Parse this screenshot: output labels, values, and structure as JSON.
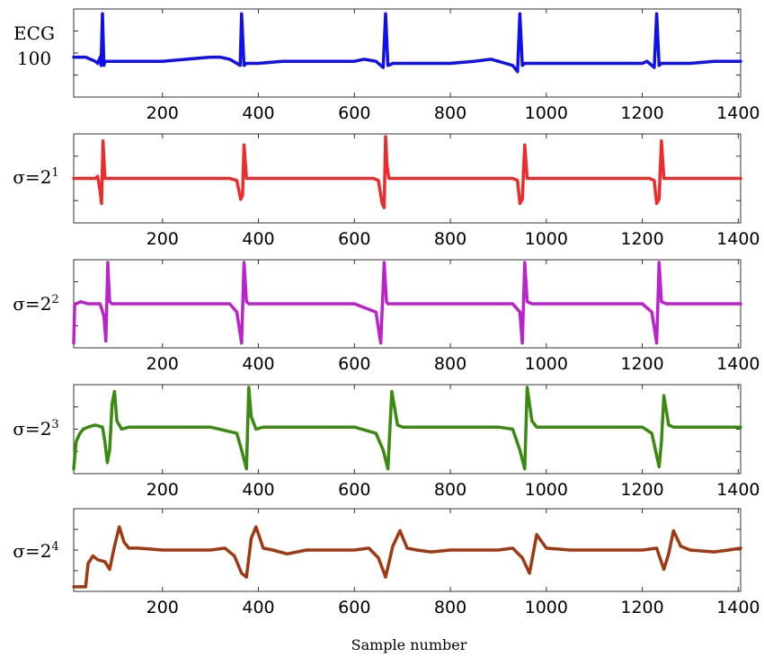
{
  "figure": {
    "xlabel": "Sample number"
  },
  "chart_data": [
    {
      "type": "line",
      "label_lines": [
        "ECG",
        "100"
      ],
      "label": "ECG 100",
      "color": "#1010ee",
      "xlim": [
        15,
        1405
      ],
      "ylim": [
        -1.0,
        1.0
      ],
      "xticks": [
        200,
        400,
        600,
        800,
        1000,
        1200,
        1400
      ],
      "xtick_labels": [
        "200",
        "400",
        "600",
        "800",
        "1000",
        "1200",
        "1400"
      ],
      "x": [
        15,
        40,
        60,
        65,
        70,
        72,
        75,
        78,
        80,
        85,
        100,
        150,
        200,
        250,
        300,
        320,
        340,
        355,
        362,
        365,
        370,
        375,
        380,
        385,
        400,
        450,
        500,
        550,
        600,
        620,
        645,
        655,
        660,
        665,
        670,
        675,
        680,
        700,
        750,
        800,
        850,
        885,
        900,
        915,
        930,
        940,
        945,
        950,
        955,
        960,
        965,
        1000,
        1050,
        1100,
        1150,
        1200,
        1210,
        1220,
        1225,
        1230,
        1235,
        1240,
        1260,
        1300,
        1350,
        1370,
        1405
      ],
      "y": [
        -0.1,
        -0.1,
        -0.2,
        -0.25,
        -0.1,
        -0.3,
        0.95,
        -0.3,
        -0.2,
        -0.2,
        -0.2,
        -0.2,
        -0.2,
        -0.15,
        -0.1,
        -0.1,
        -0.15,
        -0.25,
        -0.3,
        0.95,
        -0.3,
        -0.25,
        -0.25,
        -0.25,
        -0.25,
        -0.2,
        -0.2,
        -0.2,
        -0.2,
        -0.15,
        -0.2,
        -0.3,
        -0.35,
        0.95,
        -0.3,
        -0.28,
        -0.25,
        -0.25,
        -0.25,
        -0.25,
        -0.2,
        -0.15,
        -0.2,
        -0.25,
        -0.3,
        -0.45,
        0.95,
        -0.3,
        -0.25,
        -0.25,
        -0.25,
        -0.25,
        -0.25,
        -0.25,
        -0.25,
        -0.25,
        -0.2,
        -0.3,
        -0.35,
        0.95,
        -0.3,
        -0.25,
        -0.25,
        -0.25,
        -0.2,
        -0.2,
        -0.2
      ]
    },
    {
      "type": "line",
      "label": "σ=2",
      "label_sup": "1",
      "color": "#ee2a2a",
      "xlim": [
        15,
        1405
      ],
      "ylim": [
        -1.0,
        1.0
      ],
      "xticks": [
        200,
        400,
        600,
        800,
        1000,
        1200,
        1400
      ],
      "xtick_labels": [
        "200",
        "400",
        "600",
        "800",
        "1000",
        "1200",
        "1400"
      ],
      "x": [
        15,
        60,
        65,
        70,
        73,
        76,
        80,
        85,
        100,
        150,
        200,
        250,
        300,
        340,
        355,
        363,
        367,
        370,
        375,
        380,
        385,
        400,
        450,
        500,
        550,
        600,
        640,
        650,
        658,
        662,
        665,
        668,
        672,
        680,
        700,
        750,
        800,
        850,
        900,
        930,
        940,
        945,
        950,
        955,
        960,
        965,
        1000,
        1050,
        1100,
        1150,
        1200,
        1215,
        1225,
        1230,
        1235,
        1240,
        1245,
        1260,
        1300,
        1350,
        1405
      ],
      "y": [
        0.0,
        0.0,
        0.05,
        -0.3,
        -0.6,
        0.9,
        0.0,
        0.0,
        0.0,
        0.0,
        0.0,
        0.0,
        0.0,
        0.0,
        -0.05,
        -0.5,
        -0.4,
        0.8,
        0.0,
        0.0,
        0.0,
        0.0,
        0.0,
        0.0,
        0.0,
        0.0,
        0.0,
        -0.05,
        -0.6,
        -0.7,
        1.0,
        0.3,
        0.0,
        0.0,
        0.0,
        0.0,
        0.0,
        0.0,
        0.0,
        0.0,
        -0.05,
        -0.6,
        -0.5,
        0.8,
        0.0,
        0.0,
        0.0,
        0.0,
        0.0,
        0.0,
        0.0,
        0.0,
        -0.05,
        -0.6,
        -0.5,
        0.9,
        0.0,
        0.0,
        0.0,
        0.0,
        0.0
      ]
    },
    {
      "type": "line",
      "label": "σ=2",
      "label_sup": "2",
      "color": "#bb22cc",
      "xlim": [
        15,
        1405
      ],
      "ylim": [
        -1.0,
        1.0
      ],
      "xticks": [
        200,
        400,
        600,
        800,
        1000,
        1200,
        1400
      ],
      "xtick_labels": [
        "200",
        "400",
        "600",
        "800",
        "1000",
        "1200",
        "1400"
      ],
      "x": [
        15,
        17,
        20,
        30,
        45,
        60,
        70,
        78,
        82,
        86,
        90,
        95,
        110,
        150,
        200,
        250,
        300,
        340,
        355,
        365,
        370,
        375,
        380,
        390,
        450,
        500,
        550,
        600,
        645,
        655,
        662,
        667,
        670,
        680,
        700,
        750,
        800,
        850,
        900,
        930,
        945,
        950,
        955,
        960,
        970,
        1000,
        1050,
        1100,
        1150,
        1200,
        1220,
        1230,
        1235,
        1240,
        1250,
        1300,
        1350,
        1405
      ],
      "y": [
        -0.95,
        0.0,
        0.0,
        0.05,
        0.0,
        0.0,
        0.0,
        -0.3,
        -0.9,
        1.0,
        0.05,
        0.0,
        0.0,
        0.0,
        0.0,
        0.0,
        0.0,
        0.0,
        -0.2,
        -0.95,
        1.0,
        0.05,
        0.0,
        0.0,
        0.0,
        0.0,
        0.0,
        0.0,
        -0.2,
        -0.95,
        1.0,
        0.05,
        0.0,
        0.0,
        0.0,
        0.0,
        0.0,
        0.0,
        0.0,
        0.0,
        -0.2,
        -0.95,
        1.0,
        0.05,
        0.0,
        0.0,
        0.0,
        0.0,
        0.0,
        0.0,
        -0.2,
        -0.95,
        1.0,
        0.05,
        0.0,
        0.0,
        0.0,
        0.0
      ]
    },
    {
      "type": "line",
      "label": "σ=2",
      "label_sup": "3",
      "color": "#3a8a10",
      "xlim": [
        15,
        1405
      ],
      "ylim": [
        -1.0,
        1.0
      ],
      "xticks": [
        200,
        400,
        600,
        800,
        1000,
        1200,
        1400
      ],
      "xtick_labels": [
        "200",
        "400",
        "600",
        "800",
        "1000",
        "1200",
        "1400"
      ],
      "x": [
        15,
        20,
        28,
        35,
        45,
        60,
        75,
        80,
        85,
        90,
        95,
        100,
        105,
        115,
        130,
        200,
        250,
        300,
        355,
        365,
        375,
        380,
        385,
        395,
        410,
        450,
        500,
        550,
        600,
        645,
        660,
        670,
        678,
        690,
        700,
        750,
        800,
        850,
        900,
        930,
        945,
        955,
        960,
        970,
        980,
        1050,
        1100,
        1150,
        1200,
        1220,
        1235,
        1240,
        1245,
        1255,
        1265,
        1300,
        1350,
        1405
      ],
      "y": [
        -0.95,
        -0.3,
        -0.1,
        0.0,
        0.05,
        0.1,
        0.05,
        -0.3,
        -0.8,
        -0.5,
        0.6,
        0.9,
        0.2,
        0.0,
        0.05,
        0.05,
        0.05,
        0.05,
        -0.1,
        -0.5,
        -0.95,
        1.0,
        0.3,
        0.0,
        0.05,
        0.05,
        0.05,
        0.05,
        0.05,
        -0.1,
        -0.5,
        -0.95,
        0.9,
        0.1,
        0.05,
        0.05,
        0.05,
        0.05,
        0.05,
        0.0,
        -0.5,
        -0.95,
        1.0,
        0.2,
        0.05,
        0.05,
        0.05,
        0.05,
        0.05,
        -0.1,
        -0.9,
        -0.3,
        0.8,
        0.1,
        0.05,
        0.05,
        0.05,
        0.05
      ]
    },
    {
      "type": "line",
      "label": "σ=2",
      "label_sup": "4",
      "color": "#a03812",
      "xlim": [
        15,
        1405
      ],
      "ylim": [
        -1.0,
        1.0
      ],
      "xticks": [
        200,
        400,
        600,
        800,
        1000,
        1200,
        1400
      ],
      "xtick_labels": [
        "200",
        "400",
        "600",
        "800",
        "1000",
        "1200",
        "1400"
      ],
      "x": [
        15,
        40,
        45,
        55,
        65,
        80,
        90,
        100,
        110,
        120,
        130,
        150,
        200,
        250,
        300,
        330,
        350,
        365,
        375,
        385,
        395,
        410,
        430,
        460,
        500,
        550,
        600,
        630,
        650,
        665,
        680,
        695,
        710,
        730,
        760,
        800,
        850,
        900,
        930,
        950,
        965,
        980,
        1000,
        1050,
        1100,
        1150,
        1200,
        1230,
        1245,
        1255,
        1265,
        1280,
        1300,
        1350,
        1380,
        1405
      ],
      "y": [
        -0.95,
        -0.95,
        -0.35,
        -0.15,
        -0.25,
        -0.3,
        -0.5,
        0.1,
        0.6,
        0.2,
        0.05,
        0.05,
        0.0,
        0.0,
        0.0,
        0.05,
        -0.15,
        -0.6,
        -0.7,
        0.3,
        0.6,
        0.05,
        0.0,
        -0.1,
        0.0,
        0.0,
        0.0,
        0.05,
        -0.2,
        -0.7,
        0.1,
        0.5,
        0.05,
        0.0,
        -0.05,
        0.0,
        0.0,
        0.0,
        0.05,
        -0.2,
        -0.6,
        0.4,
        0.05,
        0.0,
        0.0,
        0.0,
        0.0,
        0.05,
        -0.5,
        -0.1,
        0.5,
        0.1,
        0.0,
        -0.05,
        0.0,
        0.05
      ]
    }
  ]
}
